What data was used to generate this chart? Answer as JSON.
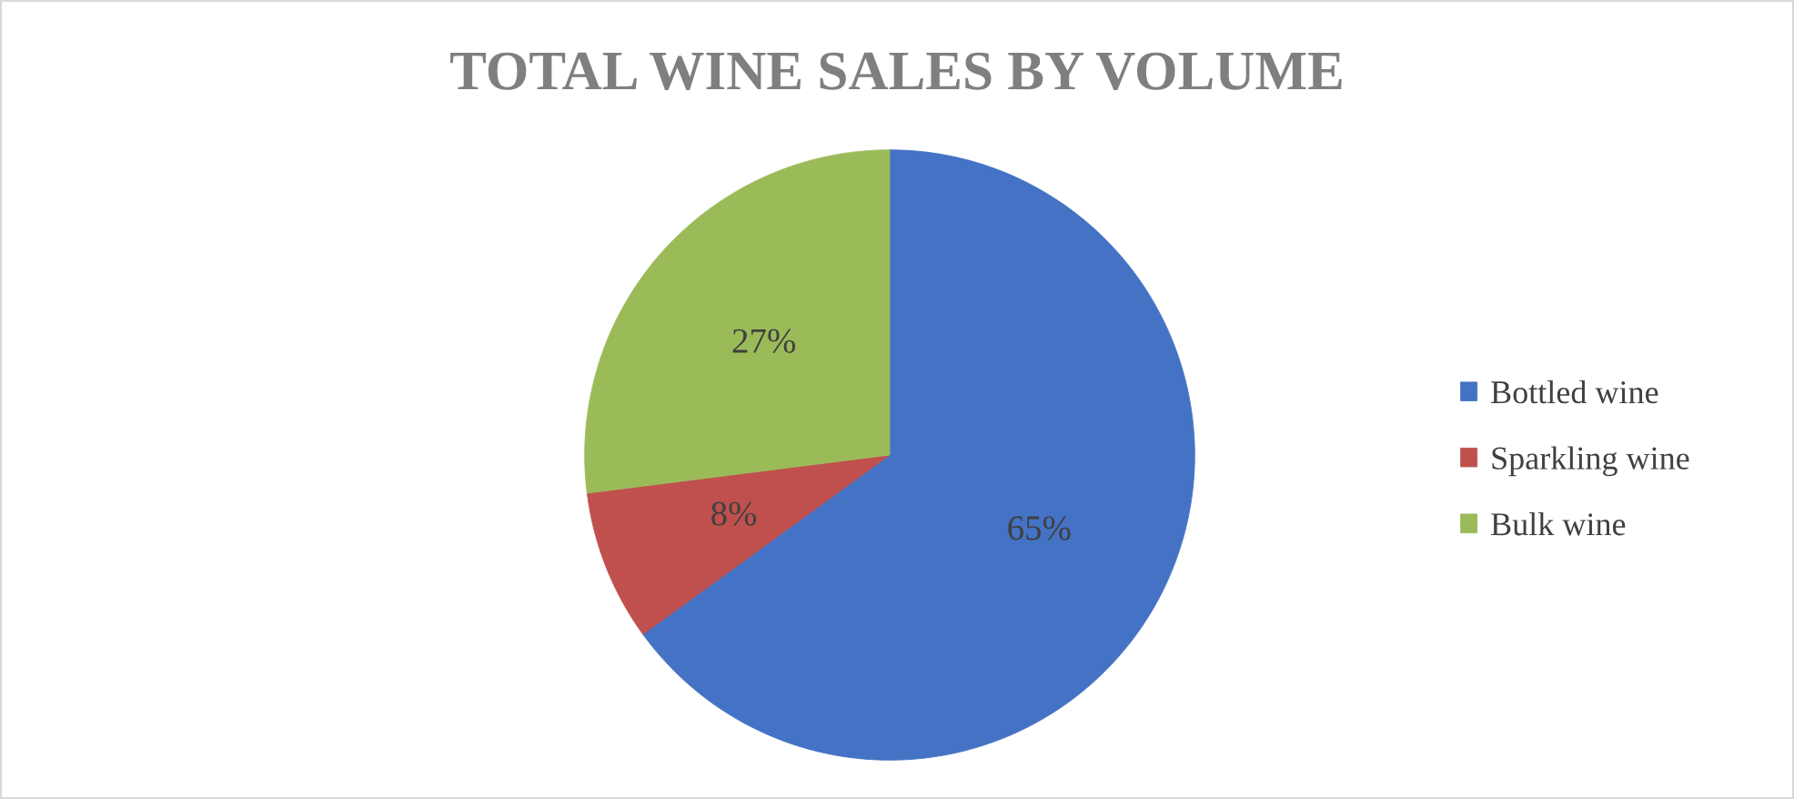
{
  "chart_data": {
    "type": "pie",
    "title": "TOTAL WINE SALES BY VOLUME",
    "categories": [
      "Bottled wine",
      "Sparkling wine",
      "Bulk wine"
    ],
    "values": [
      65,
      8,
      27
    ],
    "colors": [
      "#4472c4",
      "#c0504d",
      "#9bbb59"
    ],
    "value_labels": [
      "65%",
      "8%",
      "27%"
    ],
    "legend": "right"
  }
}
